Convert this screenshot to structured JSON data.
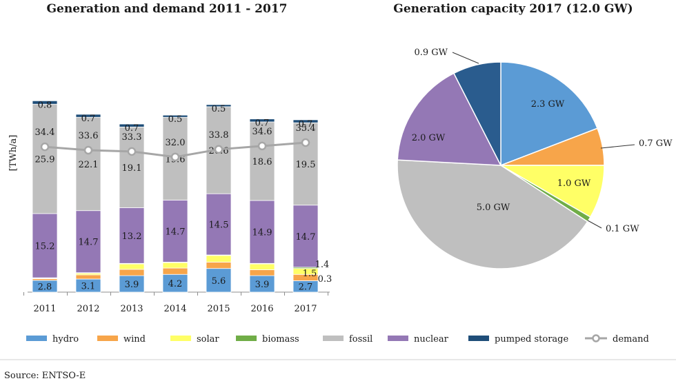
{
  "chart_data": [
    {
      "type": "bar",
      "stacked": true,
      "title": "Generation and demand 2011 - 2017",
      "ylabel": "[TWh/a]",
      "xlabel": "",
      "ylim": [
        0,
        60
      ],
      "grid": false,
      "categories": [
        "2011",
        "2012",
        "2013",
        "2014",
        "2015",
        "2016",
        "2017"
      ],
      "series": [
        {
          "name": "hydro",
          "color": "#5B9BD5",
          "values": [
            2.8,
            3.1,
            3.9,
            4.2,
            5.6,
            3.9,
            2.7
          ],
          "labels": [
            "2.8",
            "3.1",
            "3.9",
            "4.2",
            "5.6",
            "3.9",
            "2.7"
          ]
        },
        {
          "name": "wind",
          "color": "#F7A54A",
          "values": [
            0.4,
            1.0,
            1.5,
            1.5,
            1.5,
            1.4,
            1.5
          ],
          "labels": [
            "",
            "",
            "",
            "",
            "",
            "",
            "1.5"
          ]
        },
        {
          "name": "solar",
          "color": "#FFFF66",
          "values": [
            0.1,
            0.4,
            1.3,
            1.3,
            1.6,
            1.4,
            1.4
          ],
          "labels": [
            "",
            "",
            "",
            "",
            "",
            "",
            "1.4"
          ]
        },
        {
          "name": "biomass",
          "color": "#70AD47",
          "values": [
            0.1,
            0.1,
            0.1,
            0.1,
            0.1,
            0.1,
            0.3
          ],
          "labels": [
            "",
            "",
            "",
            "",
            "",
            "",
            "0.3"
          ]
        },
        {
          "name": "nuclear",
          "color": "#9478B5",
          "values": [
            15.2,
            14.7,
            13.2,
            14.7,
            14.5,
            14.9,
            14.7
          ],
          "labels": [
            "15.2",
            "14.7",
            "13.2",
            "14.7",
            "14.5",
            "14.9",
            "14.7"
          ]
        },
        {
          "name": "fossil",
          "color": "#BFBFBF",
          "values": [
            25.9,
            22.1,
            19.1,
            19.6,
            20.6,
            18.6,
            19.5
          ],
          "labels": [
            "25.9",
            "22.1",
            "19.1",
            "19.6",
            "20.6",
            "18.6",
            "19.5"
          ]
        },
        {
          "name": "pumped storage",
          "color": "#1F4E79",
          "values": [
            0.8,
            0.7,
            0.7,
            0.5,
            0.5,
            0.7,
            0.7
          ],
          "labels": [
            "0.8",
            "0.7",
            "0.7",
            "0.5",
            "0.5",
            "0.7",
            "0.7"
          ]
        }
      ],
      "demand": {
        "name": "demand",
        "color": "#A6A6A6",
        "values": [
          34.4,
          33.6,
          33.3,
          32.0,
          33.8,
          34.6,
          35.4
        ],
        "labels": [
          "34.4",
          "33.6",
          "33.3",
          "32.0",
          "33.8",
          "34.6",
          "35.4"
        ]
      }
    },
    {
      "type": "pie",
      "title": "Generation capacity 2017 (12.0 GW)",
      "slices": [
        {
          "name": "hydro",
          "value": 2.3,
          "label": "2.3 GW",
          "color": "#5B9BD5"
        },
        {
          "name": "wind",
          "value": 0.7,
          "label": "0.7 GW",
          "color": "#F7A54A"
        },
        {
          "name": "solar",
          "value": 1.0,
          "label": "1.0 GW",
          "color": "#FFFF66"
        },
        {
          "name": "biomass",
          "value": 0.1,
          "label": "0.1 GW",
          "color": "#70AD47"
        },
        {
          "name": "fossil",
          "value": 5.0,
          "label": "5.0 GW",
          "color": "#BFBFBF"
        },
        {
          "name": "nuclear",
          "value": 2.0,
          "label": "2.0 GW",
          "color": "#9478B5"
        },
        {
          "name": "pumped storage",
          "value": 0.9,
          "label": "0.9 GW",
          "color": "#2A5C8E"
        }
      ]
    }
  ],
  "legend": [
    {
      "name": "hydro",
      "color": "#5B9BD5",
      "kind": "box"
    },
    {
      "name": "wind",
      "color": "#F7A54A",
      "kind": "box"
    },
    {
      "name": "solar",
      "color": "#FFFF66",
      "kind": "box"
    },
    {
      "name": "biomass",
      "color": "#70AD47",
      "kind": "box"
    },
    {
      "name": "fossil",
      "color": "#BFBFBF",
      "kind": "box"
    },
    {
      "name": "nuclear",
      "color": "#9478B5",
      "kind": "box"
    },
    {
      "name": "pumped storage",
      "color": "#1F4E79",
      "kind": "box"
    },
    {
      "name": "demand",
      "color": "#A6A6A6",
      "kind": "line"
    }
  ],
  "source": "Source: ENTSO-E"
}
